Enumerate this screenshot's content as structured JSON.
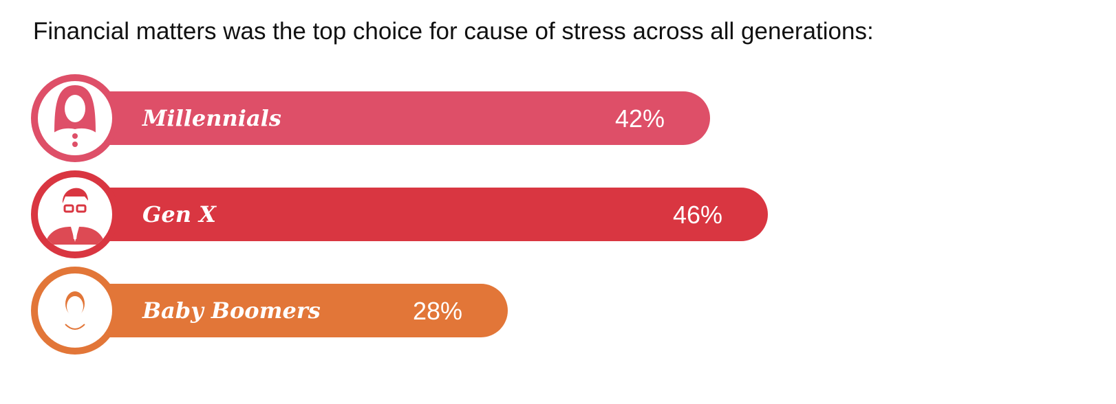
{
  "chart_data": {
    "type": "bar",
    "title": "Financial matters was the top choice for cause of stress across all generations:",
    "categories": [
      "Millennials",
      "Gen X",
      "Baby Boomers"
    ],
    "values": [
      42,
      46,
      28
    ],
    "value_labels": [
      "42%",
      "46%",
      "28%"
    ],
    "unit": "%",
    "xlim": [
      0,
      50
    ],
    "orientation": "horizontal",
    "grid": false,
    "legend": "none",
    "colors": [
      "#de4f68",
      "#d93641",
      "#e27638"
    ],
    "icons": [
      "millennial-woman-icon",
      "genx-man-glasses-icon",
      "baby-boomer-woman-icon"
    ]
  }
}
